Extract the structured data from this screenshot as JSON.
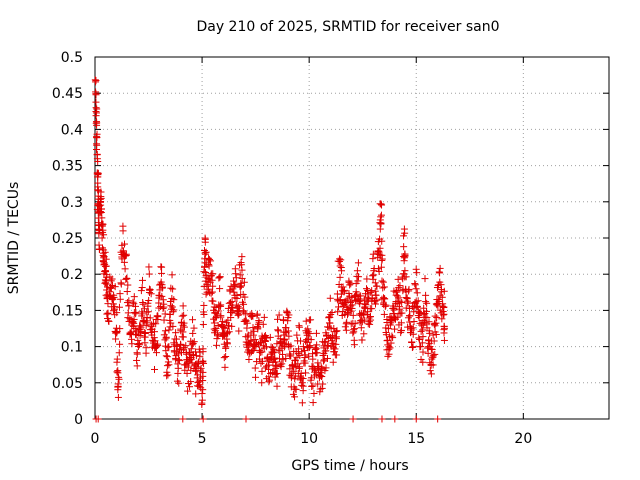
{
  "chart_data": {
    "type": "scatter",
    "title": "Day 210 of 2025, SRMTID for receiver san0",
    "xlabel": "GPS time / hours",
    "ylabel": "SRMTID / TECUs",
    "xlim": [
      0,
      24
    ],
    "ylim": [
      0,
      0.5
    ],
    "x_ticks": [
      0,
      5,
      10,
      15,
      20
    ],
    "y_ticks": [
      0,
      0.05,
      0.1,
      0.15,
      0.2,
      0.25,
      0.3,
      0.35,
      0.4,
      0.45,
      0.5
    ],
    "x_tick_labels": [
      "0",
      "5",
      "10",
      "15",
      "20"
    ],
    "y_tick_labels": [
      "0",
      "0.05",
      "0.1",
      "0.15",
      "0.2",
      "0.25",
      "0.3",
      "0.35",
      "0.4",
      "0.45",
      "0.5"
    ],
    "grid": true,
    "marker": "+",
    "color": "#e00000",
    "series": [
      {
        "name": "SRMTID",
        "points": [
          [
            0.02,
            0.46
          ],
          [
            0.05,
            0.43
          ],
          [
            0.07,
            0.4
          ],
          [
            0.1,
            0.37
          ],
          [
            0.12,
            0.33
          ],
          [
            0.15,
            0.3
          ],
          [
            0.18,
            0.27
          ],
          [
            0.2,
            0.24
          ],
          [
            0.25,
            0.31
          ],
          [
            0.3,
            0.28
          ],
          [
            0.35,
            0.25
          ],
          [
            0.4,
            0.23
          ],
          [
            0.45,
            0.21
          ],
          [
            0.5,
            0.2
          ],
          [
            0.55,
            0.17
          ],
          [
            0.6,
            0.15
          ],
          [
            0.7,
            0.19
          ],
          [
            0.8,
            0.17
          ],
          [
            0.9,
            0.15
          ],
          [
            1.0,
            0.13
          ],
          [
            1.05,
            0.07
          ],
          [
            1.1,
            0.05
          ],
          [
            1.2,
            0.2
          ],
          [
            1.3,
            0.25
          ],
          [
            1.4,
            0.22
          ],
          [
            1.5,
            0.17
          ],
          [
            1.6,
            0.13
          ],
          [
            1.7,
            0.11
          ],
          [
            1.8,
            0.15
          ],
          [
            1.9,
            0.12
          ],
          [
            2.0,
            0.1
          ],
          [
            2.1,
            0.14
          ],
          [
            2.2,
            0.17
          ],
          [
            2.3,
            0.13
          ],
          [
            2.4,
            0.1
          ],
          [
            2.5,
            0.18
          ],
          [
            2.6,
            0.15
          ],
          [
            2.7,
            0.12
          ],
          [
            2.8,
            0.09
          ],
          [
            2.9,
            0.13
          ],
          [
            3.0,
            0.16
          ],
          [
            3.1,
            0.2
          ],
          [
            3.2,
            0.15
          ],
          [
            3.3,
            0.11
          ],
          [
            3.4,
            0.08
          ],
          [
            3.5,
            0.14
          ],
          [
            3.6,
            0.17
          ],
          [
            3.7,
            0.12
          ],
          [
            3.8,
            0.09
          ],
          [
            3.9,
            0.07
          ],
          [
            4.0,
            0.11
          ],
          [
            4.1,
            0.14
          ],
          [
            4.2,
            0.1
          ],
          [
            4.3,
            0.08
          ],
          [
            4.4,
            0.06
          ],
          [
            4.5,
            0.09
          ],
          [
            4.6,
            0.12
          ],
          [
            4.7,
            0.07
          ],
          [
            4.8,
            0.05
          ],
          [
            4.9,
            0.08
          ],
          [
            5.0,
            0.03
          ],
          [
            5.05,
            0.07
          ],
          [
            5.1,
            0.21
          ],
          [
            5.15,
            0.24
          ],
          [
            5.2,
            0.18
          ],
          [
            5.3,
            0.22
          ],
          [
            5.4,
            0.19
          ],
          [
            5.5,
            0.17
          ],
          [
            5.6,
            0.14
          ],
          [
            5.7,
            0.12
          ],
          [
            5.8,
            0.18
          ],
          [
            5.9,
            0.15
          ],
          [
            6.0,
            0.11
          ],
          [
            6.1,
            0.09
          ],
          [
            6.2,
            0.13
          ],
          [
            6.3,
            0.16
          ],
          [
            6.4,
            0.14
          ],
          [
            6.5,
            0.19
          ],
          [
            6.6,
            0.17
          ],
          [
            6.7,
            0.15
          ],
          [
            6.8,
            0.21
          ],
          [
            6.9,
            0.18
          ],
          [
            7.0,
            0.14
          ],
          [
            7.1,
            0.12
          ],
          [
            7.2,
            0.09
          ],
          [
            7.3,
            0.13
          ],
          [
            7.4,
            0.11
          ],
          [
            7.5,
            0.09
          ],
          [
            7.6,
            0.12
          ],
          [
            7.7,
            0.1
          ],
          [
            7.8,
            0.08
          ],
          [
            7.9,
            0.11
          ],
          [
            8.0,
            0.09
          ],
          [
            8.1,
            0.07
          ],
          [
            8.2,
            0.1
          ],
          [
            8.3,
            0.08
          ],
          [
            8.4,
            0.06
          ],
          [
            8.5,
            0.09
          ],
          [
            8.6,
            0.11
          ],
          [
            8.7,
            0.08
          ],
          [
            8.8,
            0.12
          ],
          [
            8.9,
            0.1
          ],
          [
            9.0,
            0.14
          ],
          [
            9.1,
            0.09
          ],
          [
            9.2,
            0.07
          ],
          [
            9.3,
            0.06
          ],
          [
            9.4,
            0.08
          ],
          [
            9.5,
            0.1
          ],
          [
            9.6,
            0.07
          ],
          [
            9.7,
            0.05
          ],
          [
            9.8,
            0.09
          ],
          [
            9.9,
            0.11
          ],
          [
            10.0,
            0.12
          ],
          [
            10.1,
            0.08
          ],
          [
            10.2,
            0.06
          ],
          [
            10.3,
            0.09
          ],
          [
            10.4,
            0.07
          ],
          [
            10.5,
            0.05
          ],
          [
            10.6,
            0.08
          ],
          [
            10.7,
            0.1
          ],
          [
            10.8,
            0.09
          ],
          [
            10.9,
            0.12
          ],
          [
            11.0,
            0.14
          ],
          [
            11.1,
            0.11
          ],
          [
            11.2,
            0.09
          ],
          [
            11.3,
            0.13
          ],
          [
            11.4,
            0.21
          ],
          [
            11.5,
            0.19
          ],
          [
            11.6,
            0.17
          ],
          [
            11.7,
            0.15
          ],
          [
            11.8,
            0.13
          ],
          [
            11.9,
            0.18
          ],
          [
            12.0,
            0.15
          ],
          [
            12.1,
            0.12
          ],
          [
            12.2,
            0.17
          ],
          [
            12.3,
            0.19
          ],
          [
            12.4,
            0.14
          ],
          [
            12.5,
            0.11
          ],
          [
            12.6,
            0.16
          ],
          [
            12.7,
            0.18
          ],
          [
            12.8,
            0.13
          ],
          [
            12.9,
            0.15
          ],
          [
            13.0,
            0.2
          ],
          [
            13.1,
            0.17
          ],
          [
            13.2,
            0.22
          ],
          [
            13.3,
            0.24
          ],
          [
            13.35,
            0.29
          ],
          [
            13.4,
            0.2
          ],
          [
            13.5,
            0.16
          ],
          [
            13.6,
            0.13
          ],
          [
            13.7,
            0.1
          ],
          [
            13.8,
            0.12
          ],
          [
            13.9,
            0.15
          ],
          [
            14.0,
            0.13
          ],
          [
            14.1,
            0.18
          ],
          [
            14.2,
            0.16
          ],
          [
            14.3,
            0.12
          ],
          [
            14.4,
            0.22
          ],
          [
            14.45,
            0.25
          ],
          [
            14.5,
            0.19
          ],
          [
            14.6,
            0.16
          ],
          [
            14.7,
            0.14
          ],
          [
            14.8,
            0.11
          ],
          [
            14.9,
            0.15
          ],
          [
            15.0,
            0.18
          ],
          [
            15.1,
            0.14
          ],
          [
            15.2,
            0.12
          ],
          [
            15.3,
            0.1
          ],
          [
            15.4,
            0.16
          ],
          [
            15.5,
            0.13
          ],
          [
            15.6,
            0.11
          ],
          [
            15.7,
            0.07
          ],
          [
            15.8,
            0.1
          ],
          [
            15.9,
            0.13
          ],
          [
            16.0,
            0.16
          ],
          [
            16.1,
            0.19
          ],
          [
            16.2,
            0.17
          ],
          [
            16.3,
            0.14
          ]
        ],
        "zero_points": [
          0.05,
          0.15,
          4.1,
          5.05,
          7.05,
          12.05,
          13.4,
          14.0,
          15.0,
          16.0
        ]
      }
    ]
  }
}
